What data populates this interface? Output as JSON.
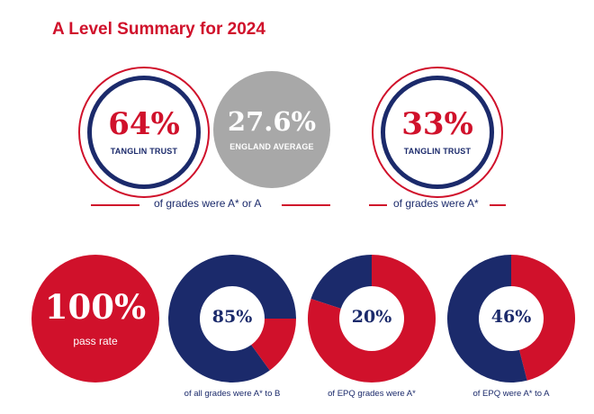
{
  "title": "A Level Summary for 2024",
  "colors": {
    "red": "#d0112b",
    "navy": "#1b2a6b",
    "grey": "#a8a8a8"
  },
  "top": {
    "trust_ab": {
      "value": "64%",
      "label": "TANGLIN TRUST"
    },
    "england_avg": {
      "value": "27.6%",
      "label": "ENGLAND AVERAGE"
    },
    "caption_ab": "of grades were A* or A",
    "trust_astar": {
      "value": "33%",
      "label": "TANGLIN TRUST"
    },
    "caption_astar": "of grades were A*"
  },
  "bottom": {
    "pass": {
      "value": "100%",
      "label": "pass rate"
    },
    "donuts": [
      {
        "value": "85%",
        "fraction": 0.85,
        "caption": "of all grades were A* to B"
      },
      {
        "value": "20%",
        "fraction": 0.2,
        "caption": "of EPQ grades were A*"
      },
      {
        "value": "46%",
        "fraction": 0.46,
        "caption": "of EPQ were A* to A"
      }
    ]
  }
}
